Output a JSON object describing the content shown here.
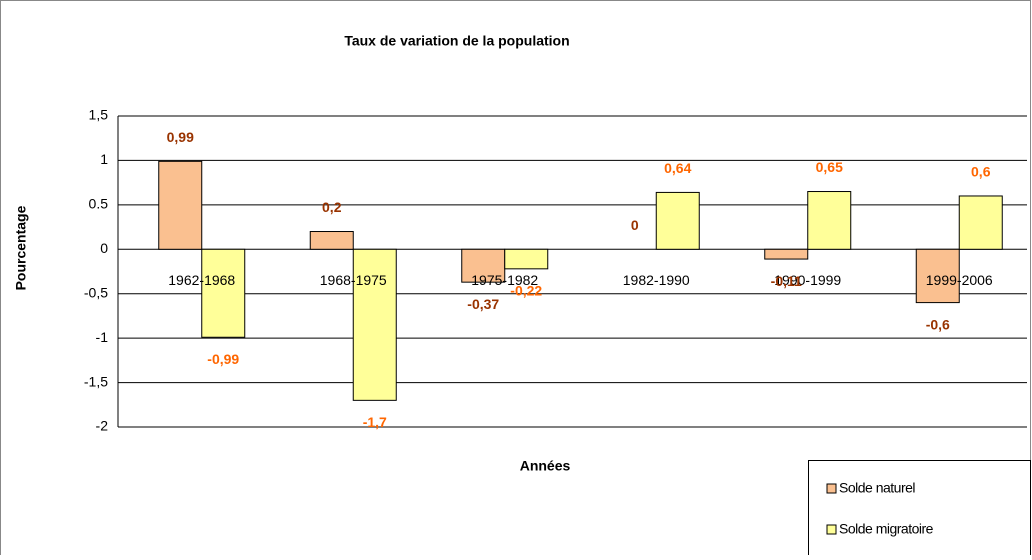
{
  "chart_data": {
    "type": "bar",
    "title": "Taux de variation de la population",
    "x_label": "Années",
    "y_label": "Pourcentage",
    "categories": [
      "1962-1968",
      "1968-1975",
      "1975-1982",
      "1982-1990",
      "1990-1999",
      "1999-2006"
    ],
    "series": [
      {
        "name": "Solde naturel",
        "color": "#fac090",
        "label_color": "#993300",
        "values": [
          0.99,
          0.2,
          -0.37,
          0,
          -0.11,
          -0.6
        ],
        "value_labels": [
          "0,99",
          "0,2",
          "-0,37",
          "0",
          "-0,11",
          "-0,6"
        ]
      },
      {
        "name": "Solde migratoire",
        "color": "#ffff99",
        "label_color": "#ff6600",
        "values": [
          -0.99,
          -1.7,
          -0.22,
          0.64,
          0.65,
          0.6
        ],
        "value_labels": [
          "-0,99",
          "-1,7",
          "-0,22",
          "0,64",
          "0,65",
          "0,6"
        ]
      }
    ],
    "ylim": [
      -2,
      1.5
    ],
    "yticks": [
      -2,
      {
        "value": -1.5,
        "label": "-1,5"
      },
      -1,
      {
        "value": -0.5,
        "label": "-0,5"
      },
      0,
      0.5,
      1,
      {
        "value": 1.5,
        "label": "1,5"
      }
    ],
    "grid": true,
    "legend": "bottom-right"
  }
}
